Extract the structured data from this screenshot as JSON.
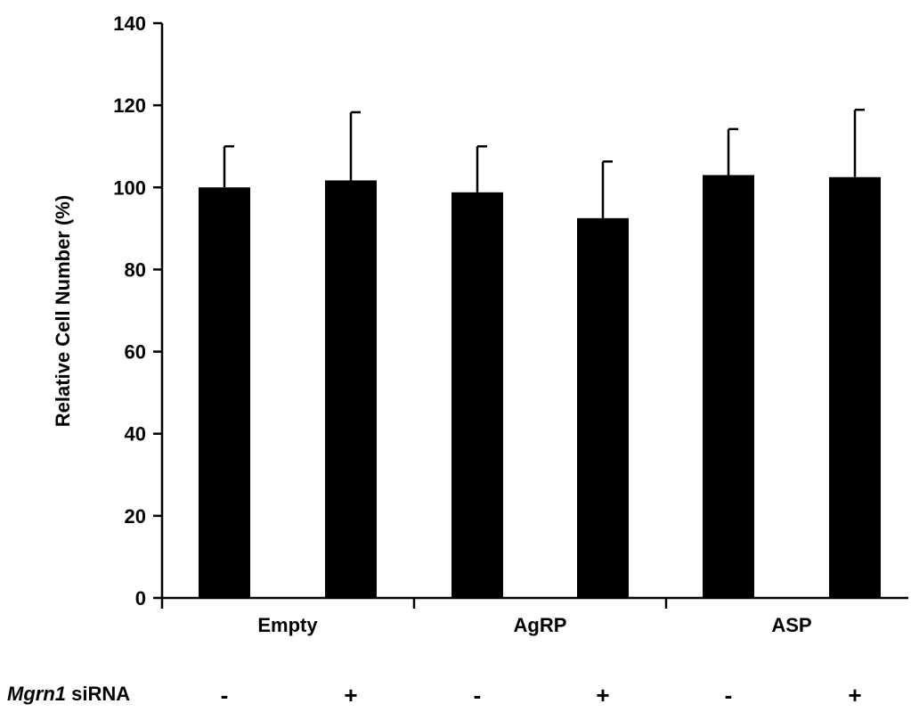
{
  "chart_data": {
    "type": "bar",
    "ylabel": "Relative Cell Number (%)",
    "ylim": [
      0,
      140
    ],
    "yticks": [
      0,
      20,
      40,
      60,
      80,
      100,
      120,
      140
    ],
    "groups": [
      "Empty",
      "AgRP",
      "ASP"
    ],
    "categories": [
      "Empty -",
      "Empty +",
      "AgRP -",
      "AgRP +",
      "ASP -",
      "ASP +"
    ],
    "values": [
      100.0,
      101.7,
      98.8,
      92.5,
      103.0,
      102.5
    ],
    "error_upper": [
      110.0,
      118.3,
      110.0,
      106.3,
      114.2,
      118.9
    ],
    "row_label_italic": "Mgrn1",
    "row_label_rest": " siRNA",
    "signs": [
      "-",
      "+",
      "-",
      "+",
      "-",
      "+"
    ],
    "bar_color": "#000000",
    "grid": false
  }
}
